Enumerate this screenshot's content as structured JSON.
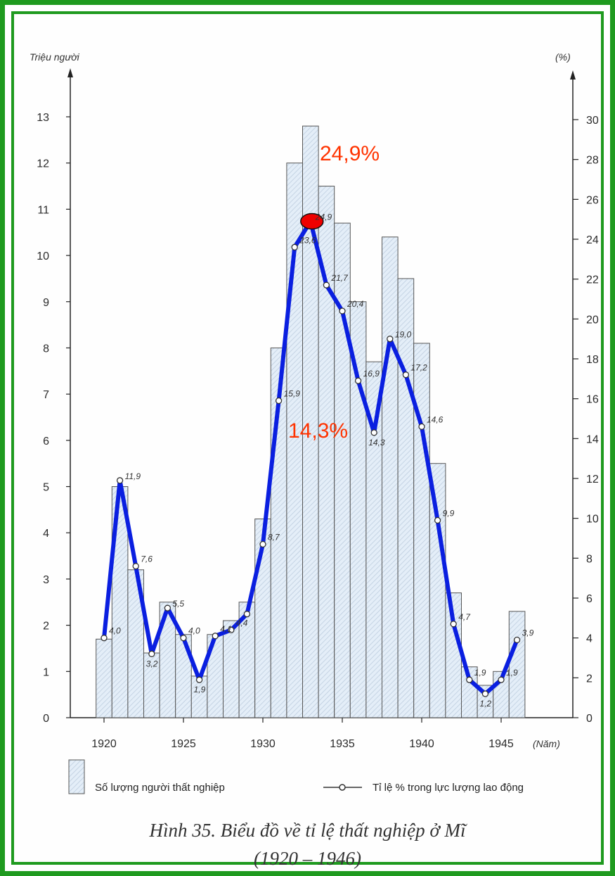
{
  "chart_data": {
    "type": "bar+line",
    "y_left_label": "Triệu người",
    "y_right_label": "(%)",
    "x_unit_label": "(Năm)",
    "ylim_left": [
      0,
      13
    ],
    "ylim_right": [
      0,
      30
    ],
    "left_ticks": [
      "0",
      "1",
      "2",
      "3",
      "4",
      "5",
      "6",
      "7",
      "8",
      "9",
      "10",
      "11",
      "12",
      "13"
    ],
    "right_ticks": [
      "0",
      "2",
      "4",
      "6",
      "8",
      "10",
      "12",
      "14",
      "16",
      "18",
      "20",
      "22",
      "24",
      "26",
      "28",
      "30"
    ],
    "x_ticks": [
      "1920",
      "1925",
      "1930",
      "1935",
      "1940",
      "1945"
    ],
    "years": [
      1920,
      1921,
      1922,
      1923,
      1924,
      1925,
      1926,
      1927,
      1928,
      1929,
      1930,
      1931,
      1932,
      1933,
      1934,
      1935,
      1936,
      1937,
      1938,
      1939,
      1940,
      1941,
      1942,
      1943,
      1944,
      1945,
      1946
    ],
    "bars_unemployed_millions": [
      1.7,
      5.0,
      3.2,
      1.4,
      2.5,
      1.8,
      0.9,
      1.8,
      2.1,
      2.5,
      4.3,
      8.0,
      12.0,
      12.8,
      11.5,
      10.7,
      9.0,
      7.7,
      10.4,
      9.5,
      8.1,
      5.5,
      2.7,
      1.1,
      0.7,
      1.0,
      2.3
    ],
    "series": [
      {
        "name": "Tỉ lệ % trong lực lượng lao động",
        "values": [
          4.0,
          11.9,
          7.6,
          3.2,
          5.5,
          4.0,
          1.9,
          4.1,
          4.4,
          5.2,
          8.7,
          15.9,
          23.6,
          24.9,
          21.7,
          20.4,
          16.9,
          14.3,
          19.0,
          17.2,
          14.6,
          9.9,
          4.7,
          1.9,
          1.2,
          1.9,
          3.9
        ]
      }
    ],
    "point_labels": [
      "4,0",
      "11,9",
      "7,6",
      "3,2",
      "5,5",
      "4,0",
      "1,9",
      "4,1",
      "4,4",
      "",
      "8,7",
      "15,9",
      "23,6",
      "24,9",
      "21,7",
      "20,4",
      "16,9",
      "14,3",
      "19,0",
      "17,2",
      "14,6",
      "9,9",
      "4,7",
      "1,9",
      "1,2",
      "1,9",
      "3,9"
    ],
    "highlight_peak": "24,9%",
    "highlight_trough": "14,3%",
    "legend": {
      "bar_label": "Số lượng người thất nghiệp",
      "line_label": "Tỉ lệ % trong lực lượng lao động"
    }
  },
  "caption": {
    "line1": "Hình 35. Biểu đồ về tỉ lệ thất nghiệp ở Mĩ",
    "line2": "(1920 – 1946)"
  },
  "colors": {
    "frame": "#1f9a1f",
    "bar_fill": "#e4eef8",
    "bar_stroke": "#555555",
    "line_blue": "#0a1fe0",
    "highlight": "#ff3300",
    "marker_red": "#ee0000"
  }
}
